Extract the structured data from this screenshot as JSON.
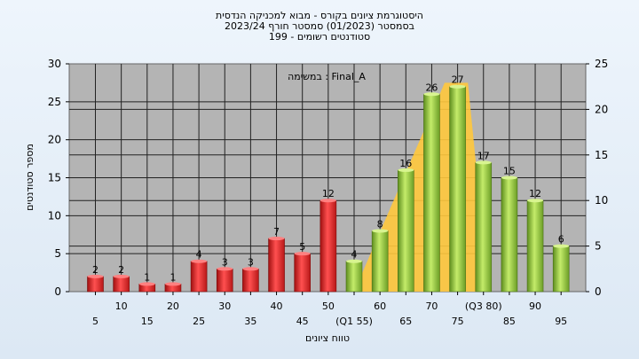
{
  "chart_data": {
    "type": "bar",
    "title_lines": [
      "היסטוגרמת ציונים בקורס - מבוא למכניקה הנדסית",
      "בסמסטר  (01/2023)  סמסטר חורף 2023/24",
      "סטודנטים רשומים - 199"
    ],
    "annotation": "במשימה : Final_A",
    "xlabel": "טווח ציונים",
    "ylabel": "מספר סטודנטים",
    "ylim": [
      0,
      30
    ],
    "y_ticks": [
      "0",
      "5",
      "10",
      "15",
      "20",
      "25",
      "30"
    ],
    "y2lim": [
      0,
      25
    ],
    "y2_ticks": [
      "0",
      "5",
      "10",
      "15",
      "20",
      "25"
    ],
    "grid": true,
    "categories": [
      "5",
      "10",
      "15",
      "20",
      "25",
      "30",
      "35",
      "40",
      "45",
      "50",
      "55",
      "60",
      "65",
      "70",
      "75",
      "80",
      "85",
      "90",
      "95"
    ],
    "x_tick_labels": [
      "5",
      "10",
      "15",
      "20",
      "25",
      "30",
      "35",
      "40",
      "45",
      "50",
      "(Q1 55)",
      "60",
      "65",
      "70",
      "75",
      "(Q3 80)",
      "85",
      "90",
      "95"
    ],
    "values": [
      2,
      2,
      1,
      1,
      4,
      3,
      3,
      7,
      5,
      12,
      4,
      8,
      16,
      26,
      27,
      17,
      15,
      12,
      6
    ],
    "bar_colors": [
      "#e83030",
      "#e83030",
      "#e83030",
      "#e83030",
      "#e83030",
      "#e83030",
      "#e83030",
      "#e83030",
      "#e83030",
      "#e83030",
      "#8cc63e",
      "#8cc63e",
      "#8cc63e",
      "#8cc63e",
      "#8cc63e",
      "#8cc63e",
      "#8cc63e",
      "#8cc63e",
      "#8cc63e"
    ],
    "quartile_band": {
      "color": "#ffc83c",
      "points": [
        [
          55,
          0
        ],
        [
          72.5,
          27.5
        ],
        [
          77,
          27.5
        ],
        [
          81,
          0
        ]
      ]
    }
  }
}
